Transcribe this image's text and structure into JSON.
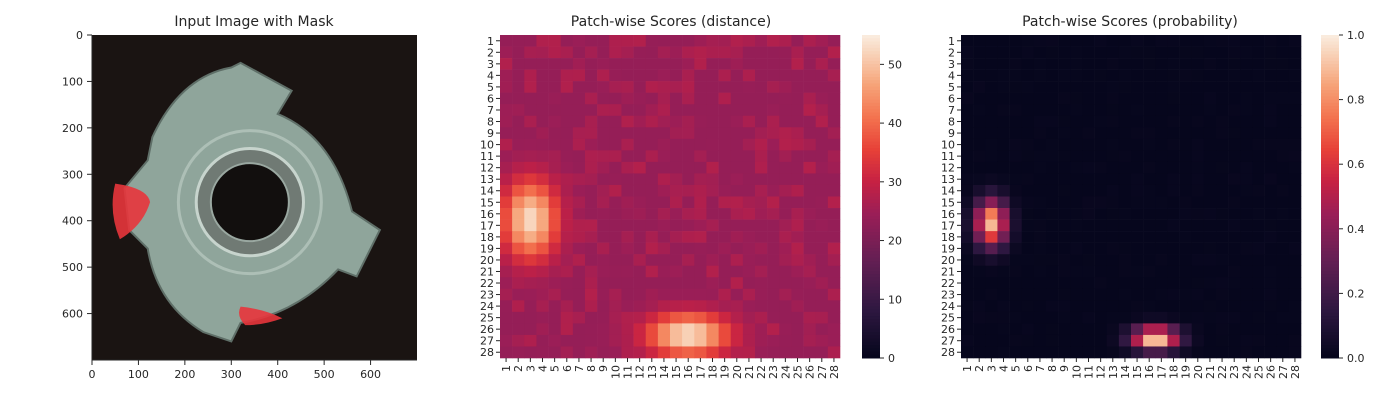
{
  "chart_data": [
    {
      "type": "image",
      "title": "Input Image with Mask",
      "xticks": [
        0,
        100,
        200,
        300,
        400,
        500,
        600
      ],
      "yticks": [
        0,
        100,
        200,
        300,
        400,
        500,
        600
      ],
      "xlim": [
        0,
        700
      ],
      "ylim": [
        700,
        0
      ],
      "image": {
        "background": "#1a1412",
        "part_color": "#8fa59b",
        "hole_color": "#120f0e",
        "mask_color": "#e8353c",
        "mask_regions": [
          "left-edge",
          "bottom-center"
        ]
      }
    },
    {
      "type": "heatmap",
      "title": "Patch-wise Scores (distance)",
      "rows": 28,
      "cols": 28,
      "tick_labels": [
        "1",
        "2",
        "3",
        "4",
        "5",
        "6",
        "7",
        "8",
        "9",
        "10",
        "11",
        "12",
        "13",
        "14",
        "15",
        "16",
        "17",
        "18",
        "19",
        "20",
        "21",
        "22",
        "23",
        "24",
        "25",
        "26",
        "27",
        "28"
      ],
      "vmin": 0,
      "vmax": 55,
      "colorbar_ticks": [
        0,
        10,
        20,
        30,
        40,
        50
      ],
      "colormap": "rocket",
      "baseline": 24,
      "noise": 4,
      "hotspots": [
        {
          "row": 16.5,
          "col": 3,
          "peak": 53,
          "sigma_r": 2.4,
          "sigma_c": 1.6
        },
        {
          "row": 26.5,
          "col": 16,
          "peak": 54,
          "sigma_r": 1.3,
          "sigma_c": 2.4
        }
      ]
    },
    {
      "type": "heatmap",
      "title": "Patch-wise Scores (probability)",
      "rows": 28,
      "cols": 28,
      "tick_labels": [
        "1",
        "2",
        "3",
        "4",
        "5",
        "6",
        "7",
        "8",
        "9",
        "10",
        "11",
        "12",
        "13",
        "14",
        "15",
        "16",
        "17",
        "18",
        "19",
        "20",
        "21",
        "22",
        "23",
        "24",
        "25",
        "26",
        "27",
        "28"
      ],
      "vmin": 0,
      "vmax": 1,
      "colorbar_ticks": [
        "0.0",
        "0.2",
        "0.4",
        "0.6",
        "0.8",
        "1.0"
      ],
      "colormap": "rocket",
      "baseline": 0.01,
      "noise": 0.01,
      "hotspots": [
        {
          "row": 16.8,
          "col": 3,
          "peak": 0.9,
          "sigma_r": 1.4,
          "sigma_c": 0.9
        },
        {
          "row": 26.8,
          "col": 16.5,
          "peak": 1.0,
          "sigma_r": 0.7,
          "sigma_c": 1.3
        }
      ]
    }
  ]
}
